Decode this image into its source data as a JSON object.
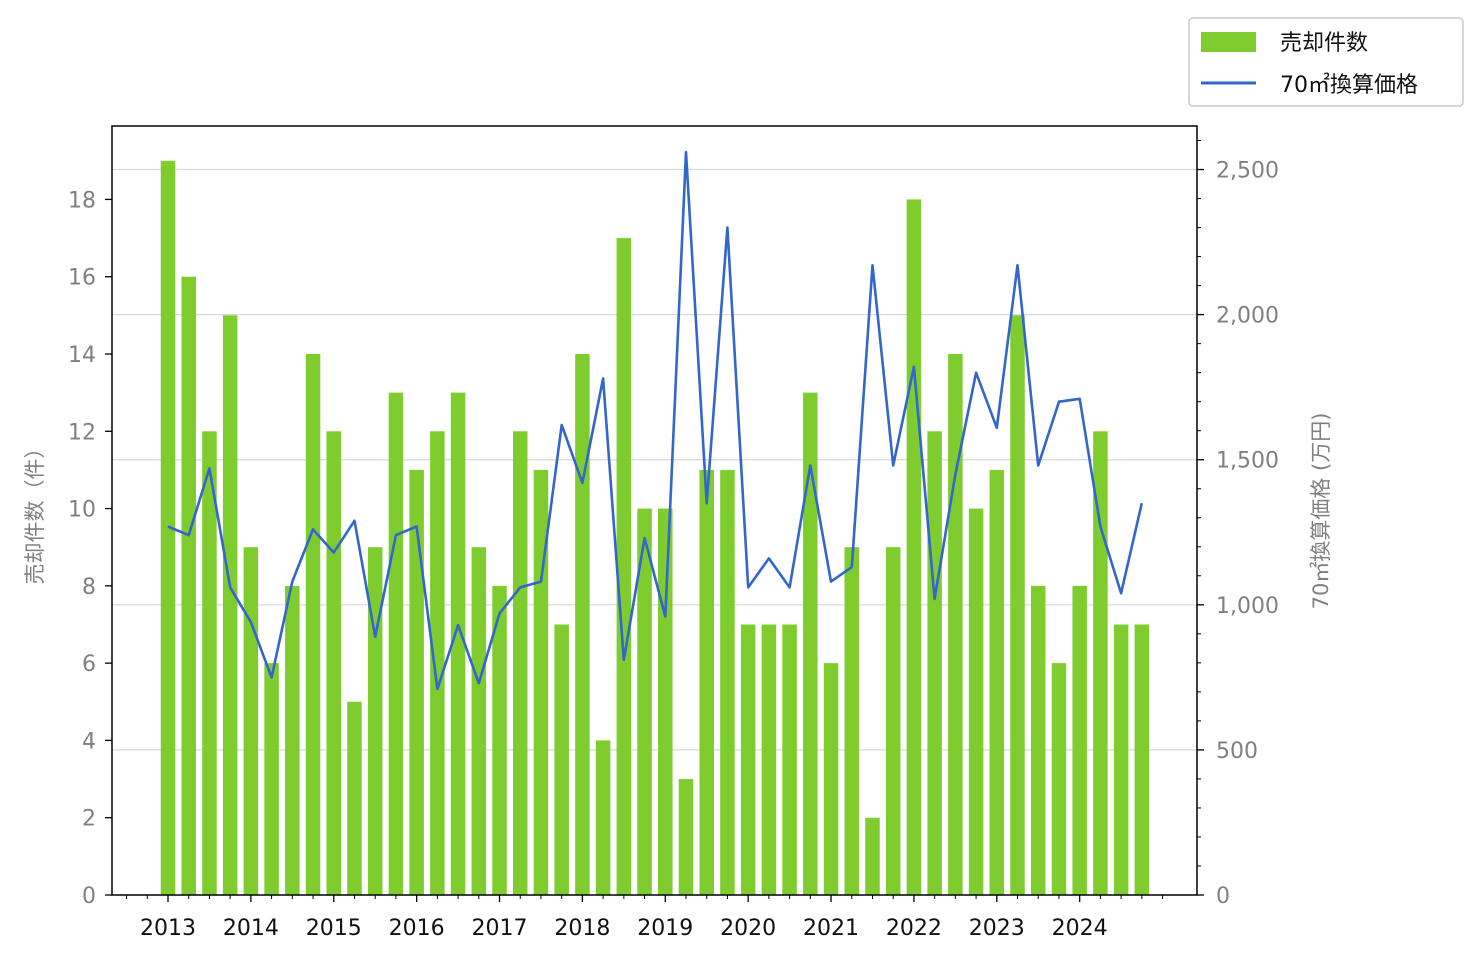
{
  "chart_data": {
    "type": "bar+line",
    "x": [
      "2013Q1",
      "2013Q2",
      "2013Q3",
      "2013Q4",
      "2014Q1",
      "2014Q2",
      "2014Q3",
      "2014Q4",
      "2015Q1",
      "2015Q2",
      "2015Q3",
      "2015Q4",
      "2016Q1",
      "2016Q2",
      "2016Q3",
      "2016Q4",
      "2017Q1",
      "2017Q2",
      "2017Q3",
      "2017Q4",
      "2018Q1",
      "2018Q2",
      "2018Q3",
      "2018Q4",
      "2019Q1",
      "2019Q2",
      "2019Q3",
      "2019Q4",
      "2020Q1",
      "2020Q2",
      "2020Q3",
      "2020Q4",
      "2021Q1",
      "2021Q2",
      "2021Q3",
      "2021Q4",
      "2022Q1",
      "2022Q2",
      "2022Q3",
      "2022Q4",
      "2023Q1",
      "2023Q2",
      "2023Q3",
      "2023Q4",
      "2024Q1",
      "2024Q2",
      "2024Q3",
      "2024Q4"
    ],
    "x_tick_labels": [
      "2013",
      "2014",
      "2015",
      "2016",
      "2017",
      "2018",
      "2019",
      "2020",
      "2021",
      "2022",
      "2023",
      "2024"
    ],
    "series": [
      {
        "name": "売却件数",
        "type": "bar",
        "axis": "left",
        "color": "#7fcc2e",
        "values": [
          19,
          16,
          12,
          15,
          9,
          6,
          8,
          14,
          12,
          5,
          9,
          13,
          11,
          12,
          13,
          9,
          8,
          12,
          11,
          7,
          14,
          4,
          17,
          10,
          10,
          3,
          11,
          11,
          7,
          7,
          7,
          13,
          6,
          9,
          2,
          9,
          18,
          12,
          14,
          10,
          11,
          15,
          8,
          6,
          8,
          12,
          7,
          7
        ]
      },
      {
        "name": "70㎡換算価格",
        "type": "line",
        "axis": "right",
        "color": "#3366cc",
        "values": [
          1270,
          1240,
          1470,
          1060,
          940,
          750,
          1080,
          1260,
          1180,
          1290,
          890,
          1240,
          1270,
          710,
          930,
          730,
          970,
          1060,
          1080,
          1620,
          1420,
          1780,
          810,
          1230,
          960,
          2560,
          1350,
          2300,
          1060,
          1160,
          1060,
          1480,
          1080,
          1130,
          2170,
          1480,
          1820,
          1020,
          1450,
          1800,
          1610,
          2170,
          1480,
          1700,
          1710,
          1270,
          1040,
          1350
        ]
      }
    ],
    "ylabel_left": "売却件数（件）",
    "ylabel_right": "70㎡換算価格 (万円)",
    "ylim_left": [
      0,
      19.9
    ],
    "ylim_right": [
      0,
      2650
    ],
    "yticks_left": [
      "0",
      "2",
      "4",
      "6",
      "8",
      "10",
      "12",
      "14",
      "16",
      "18"
    ],
    "yticks_right": [
      "0",
      "500",
      "1,000",
      "1,500",
      "2,000",
      "2,500"
    ],
    "grid": "horizontal, right axis",
    "legend_position": "top-right, outside plot"
  }
}
